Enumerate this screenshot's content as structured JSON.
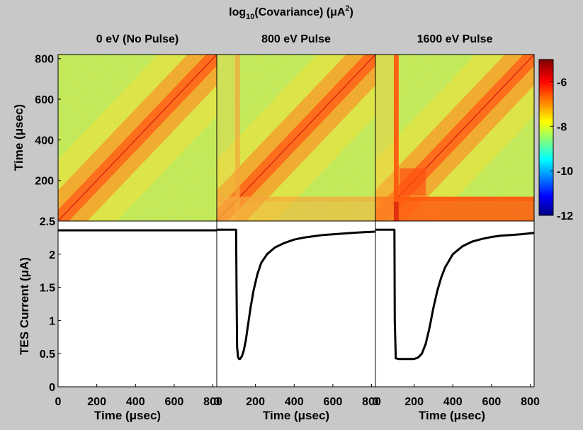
{
  "figure": {
    "title_prefix": "log",
    "title_sub": "10",
    "title_middle": "(Covariance) (μA",
    "title_sup": "2",
    "title_suffix": ")",
    "panel_titles": [
      "0 eV (No Pulse)",
      "800 eV Pulse",
      "1600 eV Pulse"
    ],
    "top_ylabel": "Time (μsec)",
    "bottom_ylabel": "TES Current (μA)",
    "xlabel": "Time (μsec)"
  },
  "chart_data": [
    {
      "type": "heatmap",
      "panels": [
        "0 eV (No Pulse)",
        "800 eV Pulse",
        "1600 eV Pulse"
      ],
      "ylabel": "Time (μsec)",
      "xlim": [
        0,
        820
      ],
      "ylim": [
        0,
        820
      ],
      "yticks": [
        200,
        400,
        600,
        800
      ],
      "colorbar": {
        "ticks": [
          -6,
          -8,
          -10,
          -12
        ],
        "range": [
          -12,
          -5
        ],
        "colors": [
          "#000080",
          "#0000ff",
          "#00ffff",
          "#ffff00",
          "#ff0000",
          "#800000"
        ]
      }
    },
    {
      "type": "line",
      "ylabel": "TES Current (μA)",
      "xlabel": "Time (μsec)",
      "xlim": [
        0,
        820
      ],
      "ylim": [
        0,
        2.5
      ],
      "xticks": [
        0,
        200,
        400,
        600,
        800
      ],
      "yticks": [
        0,
        0.5,
        1,
        1.5,
        2,
        2.5
      ],
      "series": [
        {
          "x": [
            0,
            820
          ],
          "y": [
            2.36,
            2.36
          ]
        },
        {
          "x": [
            0,
            95,
            100,
            102,
            105,
            110,
            115,
            120,
            130,
            140,
            150,
            160,
            175,
            190,
            210,
            230,
            260,
            300,
            350,
            400,
            450,
            500,
            550,
            600,
            650,
            700,
            750,
            820
          ],
          "y": [
            2.37,
            2.37,
            2.37,
            1.5,
            0.6,
            0.45,
            0.42,
            0.42,
            0.46,
            0.55,
            0.7,
            0.9,
            1.2,
            1.45,
            1.7,
            1.87,
            2.0,
            2.1,
            2.17,
            2.22,
            2.25,
            2.27,
            2.29,
            2.3,
            2.31,
            2.32,
            2.33,
            2.34
          ]
        },
        {
          "x": [
            0,
            95,
            98,
            100,
            105,
            120,
            150,
            200,
            220,
            240,
            260,
            280,
            300,
            320,
            340,
            360,
            400,
            450,
            500,
            550,
            600,
            650,
            700,
            750,
            820
          ],
          "y": [
            2.37,
            2.37,
            2.37,
            1.0,
            0.43,
            0.42,
            0.42,
            0.42,
            0.44,
            0.5,
            0.65,
            0.9,
            1.2,
            1.45,
            1.65,
            1.8,
            2.0,
            2.12,
            2.19,
            2.23,
            2.26,
            2.28,
            2.29,
            2.3,
            2.32
          ]
        }
      ]
    }
  ]
}
